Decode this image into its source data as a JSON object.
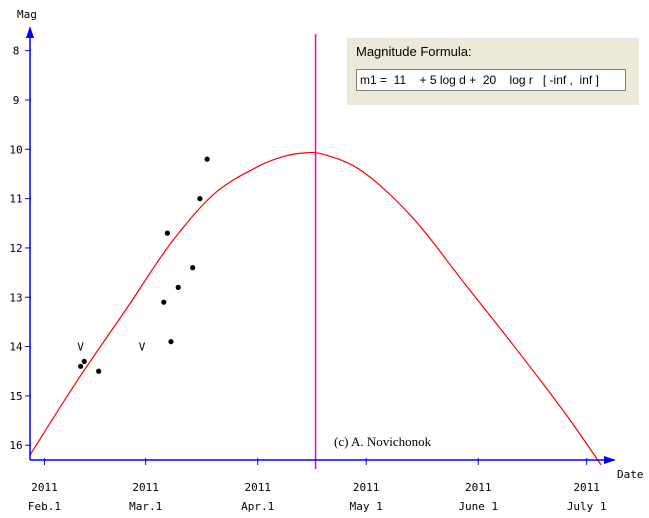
{
  "chart_data": {
    "type": "line",
    "title": "",
    "xlabel": "Date",
    "ylabel": "Mag",
    "y_inverted": true,
    "ylim": [
      16.3,
      7.5
    ],
    "xlim": [
      "2011-01-28",
      "2011-07-08"
    ],
    "y_ticks": [
      8,
      9,
      10,
      11,
      12,
      13,
      14,
      15,
      16
    ],
    "x_ticks": [
      {
        "date": "2011-02-01",
        "year": "2011",
        "month": "Feb.1"
      },
      {
        "date": "2011-03-01",
        "year": "2011",
        "month": "Mar.1"
      },
      {
        "date": "2011-04-01",
        "year": "2011",
        "month": "Apr.1"
      },
      {
        "date": "2011-05-01",
        "year": "2011",
        "month": "May 1"
      },
      {
        "date": "2011-06-01",
        "year": "2011",
        "month": "June 1"
      },
      {
        "date": "2011-07-01",
        "year": "2011",
        "month": "July 1"
      }
    ],
    "series": [
      {
        "kind": "curve",
        "color": "#ff0000",
        "points": [
          {
            "x": "2011-01-28",
            "y": 16.2
          },
          {
            "x": "2011-02-10",
            "y": 14.7
          },
          {
            "x": "2011-02-24",
            "y": 13.2
          },
          {
            "x": "2011-03-08",
            "y": 11.9
          },
          {
            "x": "2011-03-20",
            "y": 10.9
          },
          {
            "x": "2011-04-01",
            "y": 10.35
          },
          {
            "x": "2011-04-08",
            "y": 10.15
          },
          {
            "x": "2011-04-13",
            "y": 10.08
          },
          {
            "x": "2011-04-19",
            "y": 10.1
          },
          {
            "x": "2011-04-30",
            "y": 10.45
          },
          {
            "x": "2011-05-14",
            "y": 11.4
          },
          {
            "x": "2011-05-28",
            "y": 12.7
          },
          {
            "x": "2011-06-11",
            "y": 14.0
          },
          {
            "x": "2011-06-25",
            "y": 15.35
          },
          {
            "x": "2011-07-05",
            "y": 16.4
          }
        ]
      },
      {
        "kind": "observations",
        "color": "#000000",
        "points": [
          {
            "x": "2011-02-11",
            "y": 14.4
          },
          {
            "x": "2011-02-12",
            "y": 14.3
          },
          {
            "x": "2011-02-16",
            "y": 14.5
          },
          {
            "x": "2011-03-06",
            "y": 13.1
          },
          {
            "x": "2011-03-07",
            "y": 11.7
          },
          {
            "x": "2011-03-08",
            "y": 13.9
          },
          {
            "x": "2011-03-10",
            "y": 12.8
          },
          {
            "x": "2011-03-14",
            "y": 12.4
          },
          {
            "x": "2011-03-16",
            "y": 11.0
          },
          {
            "x": "2011-03-18",
            "y": 10.2
          }
        ]
      },
      {
        "kind": "visual-marks",
        "label": "V",
        "color": "#000000",
        "points": [
          {
            "x": "2011-02-11",
            "y": 14.0
          },
          {
            "x": "2011-02-28",
            "y": 14.0
          }
        ]
      }
    ],
    "current_date_marker": {
      "x": "2011-04-17",
      "color": "#e000e0"
    },
    "annotation": "(c) A. Novichonok",
    "axis_color": "#0000ff"
  },
  "formula": {
    "title": "Magnitude Formula:",
    "text": "m1 =  11    + 5 log d +  20    log r   [ -inf ,  inf ]"
  }
}
